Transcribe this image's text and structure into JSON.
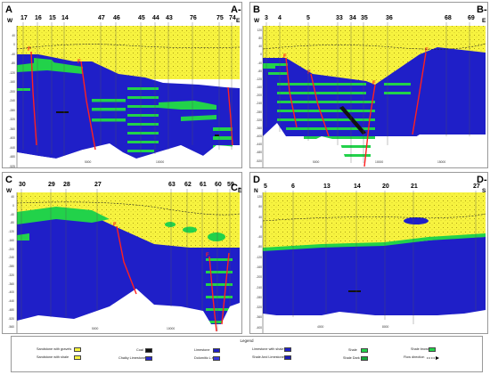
{
  "colors": {
    "sand": "#f7f33f",
    "limestone": "#1f1fc8",
    "shale_green": "#22d24a",
    "fault": "#ff2020",
    "basement": "#ffffff",
    "coal": "#111111"
  },
  "panels": [
    {
      "id": "A",
      "letter_left": "A",
      "letter_right": "A-",
      "dir_left": "W",
      "dir_right": "E",
      "wells": [
        "17",
        "16",
        "15",
        "14",
        "47",
        "46",
        "45",
        "44",
        "43",
        "76",
        "75",
        "74"
      ],
      "yticks": [
        "40",
        "0",
        "-40",
        "-80",
        "-120",
        "-160",
        "-200",
        "-240",
        "-280",
        "-320",
        "-360",
        "-400",
        "-440",
        "-480",
        "-525"
      ],
      "xticks": [
        "5000",
        "10000"
      ]
    },
    {
      "id": "B",
      "letter_left": "B",
      "letter_right": "B-",
      "dir_left": "W",
      "dir_right": "E",
      "wells": [
        "3",
        "4",
        "5",
        "33",
        "34",
        "35",
        "36",
        "68",
        "69"
      ],
      "yticks": [
        "120",
        "80",
        "40",
        "0",
        "-40",
        "-80",
        "-120",
        "-160",
        "-200",
        "-240",
        "-280",
        "-320",
        "-360",
        "-400",
        "-440",
        "-480",
        "-520"
      ],
      "xticks": [
        "5000",
        "10000",
        "15000"
      ]
    },
    {
      "id": "C",
      "letter_left": "C",
      "letter_right": "C-",
      "dir_left": "W",
      "dir_right": "E",
      "wells": [
        "30",
        "29",
        "28",
        "27",
        "63",
        "62",
        "61",
        "60",
        "59"
      ],
      "yticks": [
        "40",
        "0",
        "-40",
        "-80",
        "-120",
        "-160",
        "-200",
        "-240",
        "-280",
        "-320",
        "-360",
        "-400",
        "-440",
        "-480",
        "-520",
        "-560"
      ],
      "xticks": [
        "5000",
        "10000"
      ]
    },
    {
      "id": "D",
      "letter_left": "D",
      "letter_right": "D-",
      "dir_left": "N",
      "dir_right": "S",
      "wells": [
        "5",
        "6",
        "13",
        "14",
        "20",
        "21",
        "27"
      ],
      "yticks": [
        "120",
        "80",
        "40",
        "0",
        "-40",
        "-80",
        "-120",
        "-160",
        "-200",
        "-240",
        "-280",
        "-320",
        "-360",
        "-400"
      ],
      "xticks": [
        "4000",
        "8000"
      ]
    }
  ],
  "legend": {
    "title": "Legend",
    "items": [
      {
        "label": "Sandstone with gravels",
        "color": "#f7f33f"
      },
      {
        "label": "Sandstone with shale",
        "color": "#f7f33f"
      },
      {
        "label": "Coal",
        "color": "#111111"
      },
      {
        "label": "Chalky Limestone",
        "color": "#2a2ad0"
      },
      {
        "label": "Limestone",
        "color": "#1f1fc8"
      },
      {
        "label": "Dolomitic L.s",
        "color": "#3a3ae0"
      },
      {
        "label": "Limestone with shale",
        "color": "#1f1fc8"
      },
      {
        "label": "Shale And Limestone",
        "color": "#1a1ab8"
      },
      {
        "label": "Shale",
        "color": "#22d24a"
      },
      {
        "label": "Shale Dark",
        "color": "#16a83a"
      },
      {
        "label": "Shale brown",
        "color": "#22d24a"
      },
      {
        "label": "Flow direction",
        "color": "#000000"
      }
    ]
  }
}
